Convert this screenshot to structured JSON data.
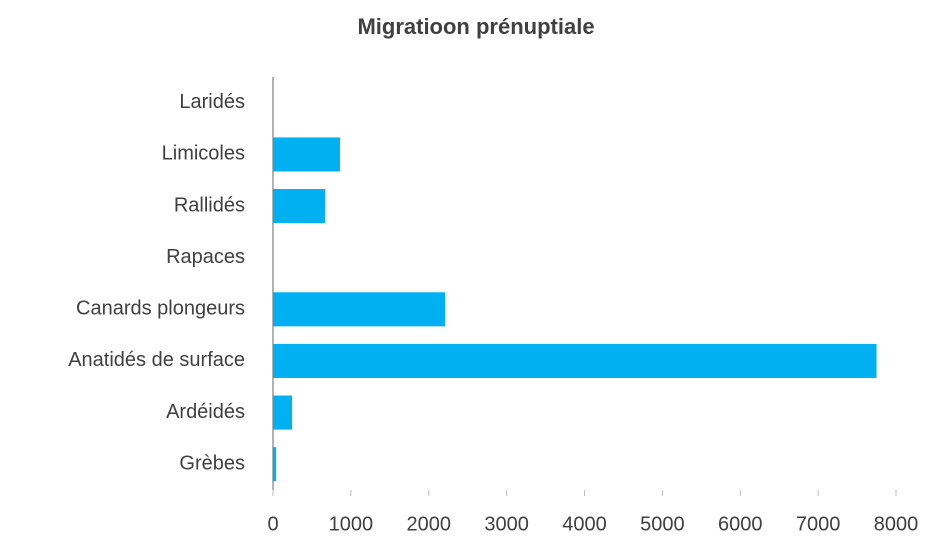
{
  "chart_data": {
    "type": "barh",
    "title": "Migratioon prénuptiale",
    "categories": [
      "Laridés",
      "Limicoles",
      "Rallidés",
      "Rapaces",
      "Canards plongeurs",
      "Anatidés de surface",
      "Ardéidés",
      "Grèbes"
    ],
    "values": [
      0,
      860,
      670,
      0,
      2210,
      7750,
      245,
      40
    ],
    "color": "#00b0f0",
    "xlim": [
      0,
      8000
    ],
    "xticks": [
      0,
      1000,
      2000,
      3000,
      4000,
      5000,
      6000,
      7000,
      8000
    ],
    "grid": false
  }
}
